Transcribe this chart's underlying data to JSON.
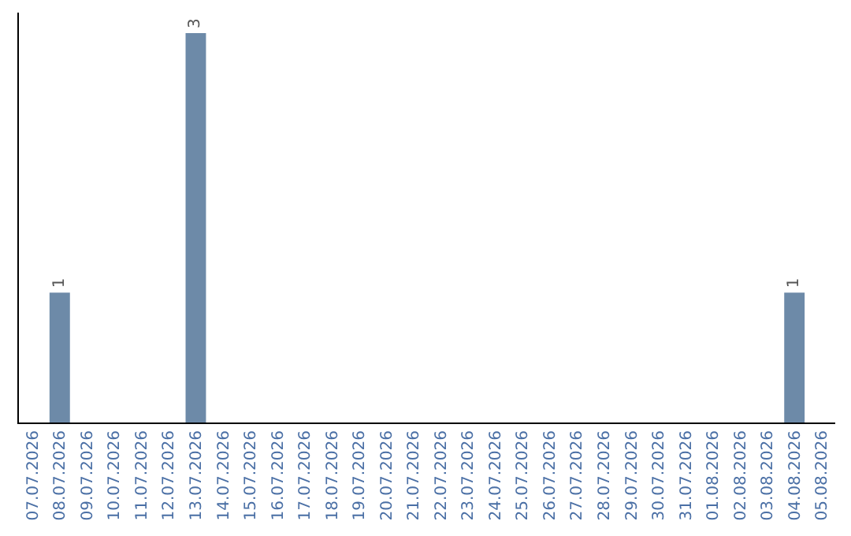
{
  "chart_data": {
    "type": "bar",
    "categories": [
      "07.07.2026",
      "08.07.2026",
      "09.07.2026",
      "10.07.2026",
      "11.07.2026",
      "12.07.2026",
      "13.07.2026",
      "14.07.2026",
      "15.07.2026",
      "16.07.2026",
      "17.07.2026",
      "18.07.2026",
      "19.07.2026",
      "20.07.2026",
      "21.07.2026",
      "22.07.2026",
      "23.07.2026",
      "24.07.2026",
      "25.07.2026",
      "26.07.2026",
      "27.07.2026",
      "28.07.2026",
      "29.07.2026",
      "30.07.2026",
      "31.07.2026",
      "01.08.2026",
      "02.08.2026",
      "03.08.2026",
      "04.08.2026",
      "05.08.2026"
    ],
    "values": [
      0,
      1,
      0,
      0,
      0,
      0,
      3,
      0,
      0,
      0,
      0,
      0,
      0,
      0,
      0,
      0,
      0,
      0,
      0,
      0,
      0,
      0,
      0,
      0,
      0,
      0,
      0,
      0,
      1,
      0
    ],
    "value_labels": [
      null,
      "1",
      null,
      null,
      null,
      null,
      "3",
      null,
      null,
      null,
      null,
      null,
      null,
      null,
      null,
      null,
      null,
      null,
      null,
      null,
      null,
      null,
      null,
      null,
      null,
      null,
      null,
      null,
      "1",
      null
    ],
    "color": "#6d8aa8",
    "tick_labels": "x"
  }
}
